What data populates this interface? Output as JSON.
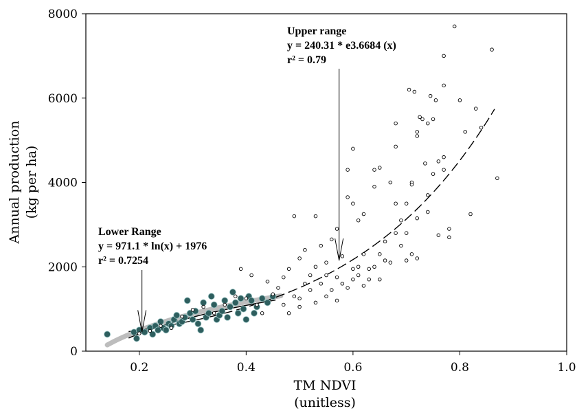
{
  "chart_data": {
    "type": "scatter",
    "xlabel_line1": "TM NDVI",
    "xlabel_line2": "(unitless)",
    "ylabel_line1": "Annual production",
    "ylabel_line2": "(kg per ha)",
    "xlim": [
      0.1,
      1.0
    ],
    "ylim": [
      0,
      8000
    ],
    "xticks": [
      0.2,
      0.4,
      0.6,
      0.8,
      1.0
    ],
    "xtick_labels": [
      "0.2",
      "0.4",
      "0.6",
      "0.8",
      "1.0"
    ],
    "yticks": [
      0,
      2000,
      4000,
      6000,
      8000
    ],
    "ytick_labels": [
      "0",
      "2000",
      "4000",
      "6000",
      "8000"
    ],
    "annotations": {
      "upper": {
        "title": "Upper range",
        "equation": "y = 240.31 * e3.6684 (x)",
        "r2": "r² = 0.79"
      },
      "lower": {
        "title": "Lower Range",
        "equation": "y = 971.1 * ln(x) + 1976",
        "r2": "r² = 0.7254"
      }
    },
    "fits": {
      "upper": {
        "a": 240.31,
        "b": 3.6684,
        "x_range": [
          0.18,
          0.87
        ]
      },
      "lower": {
        "a": 971.1,
        "b": 1976,
        "x_range": [
          0.18,
          0.46
        ]
      }
    },
    "series": [
      {
        "marker": "filled-teal",
        "color": "#2e5e5e",
        "points": [
          [
            0.14,
            400
          ],
          [
            0.19,
            450
          ],
          [
            0.195,
            300
          ],
          [
            0.2,
            500
          ],
          [
            0.21,
            450
          ],
          [
            0.22,
            550
          ],
          [
            0.225,
            400
          ],
          [
            0.23,
            600
          ],
          [
            0.235,
            500
          ],
          [
            0.24,
            700
          ],
          [
            0.245,
            550
          ],
          [
            0.25,
            500
          ],
          [
            0.255,
            650
          ],
          [
            0.26,
            600
          ],
          [
            0.265,
            750
          ],
          [
            0.27,
            850
          ],
          [
            0.275,
            650
          ],
          [
            0.28,
            700
          ],
          [
            0.285,
            800
          ],
          [
            0.29,
            1200
          ],
          [
            0.295,
            900
          ],
          [
            0.3,
            750
          ],
          [
            0.305,
            950
          ],
          [
            0.31,
            650
          ],
          [
            0.315,
            500
          ],
          [
            0.32,
            1150
          ],
          [
            0.325,
            800
          ],
          [
            0.33,
            900
          ],
          [
            0.335,
            1300
          ],
          [
            0.34,
            1100
          ],
          [
            0.345,
            750
          ],
          [
            0.35,
            850
          ],
          [
            0.355,
            950
          ],
          [
            0.36,
            1200
          ],
          [
            0.365,
            800
          ],
          [
            0.37,
            1050
          ],
          [
            0.375,
            1400
          ],
          [
            0.38,
            1150
          ],
          [
            0.385,
            900
          ],
          [
            0.39,
            1250
          ],
          [
            0.395,
            1000
          ],
          [
            0.4,
            750
          ],
          [
            0.405,
            1300
          ],
          [
            0.41,
            1200
          ],
          [
            0.415,
            900
          ],
          [
            0.42,
            1050
          ],
          [
            0.43,
            1250
          ],
          [
            0.44,
            1150
          ],
          [
            0.45,
            1300
          ]
        ]
      },
      {
        "marker": "open-circle",
        "color": "#000000",
        "points": [
          [
            0.2,
            420
          ],
          [
            0.22,
            480
          ],
          [
            0.24,
            600
          ],
          [
            0.26,
            550
          ],
          [
            0.28,
            820
          ],
          [
            0.3,
            980
          ],
          [
            0.32,
            1050
          ],
          [
            0.34,
            900
          ],
          [
            0.36,
            1100
          ],
          [
            0.38,
            1300
          ],
          [
            0.39,
            1950
          ],
          [
            0.4,
            1250
          ],
          [
            0.41,
            1800
          ],
          [
            0.42,
            1100
          ],
          [
            0.43,
            900
          ],
          [
            0.44,
            1650
          ],
          [
            0.45,
            1350
          ],
          [
            0.46,
            1500
          ],
          [
            0.47,
            1750
          ],
          [
            0.47,
            1100
          ],
          [
            0.48,
            1950
          ],
          [
            0.48,
            900
          ],
          [
            0.49,
            3200
          ],
          [
            0.49,
            1300
          ],
          [
            0.5,
            1250
          ],
          [
            0.5,
            2200
          ],
          [
            0.5,
            1050
          ],
          [
            0.51,
            1600
          ],
          [
            0.51,
            2400
          ],
          [
            0.52,
            1450
          ],
          [
            0.52,
            1800
          ],
          [
            0.53,
            3200
          ],
          [
            0.53,
            2000
          ],
          [
            0.53,
            1150
          ],
          [
            0.54,
            1600
          ],
          [
            0.54,
            2500
          ],
          [
            0.55,
            1800
          ],
          [
            0.55,
            1300
          ],
          [
            0.55,
            2100
          ],
          [
            0.56,
            1450
          ],
          [
            0.56,
            2650
          ],
          [
            0.57,
            1750
          ],
          [
            0.57,
            2900
          ],
          [
            0.57,
            1200
          ],
          [
            0.58,
            1600
          ],
          [
            0.58,
            2250
          ],
          [
            0.59,
            3650
          ],
          [
            0.59,
            1500
          ],
          [
            0.59,
            4300
          ],
          [
            0.6,
            1950
          ],
          [
            0.6,
            3500
          ],
          [
            0.6,
            1700
          ],
          [
            0.6,
            4800
          ],
          [
            0.61,
            1800
          ],
          [
            0.61,
            2000
          ],
          [
            0.61,
            3100
          ],
          [
            0.62,
            1550
          ],
          [
            0.62,
            3250
          ],
          [
            0.62,
            2300
          ],
          [
            0.63,
            1700
          ],
          [
            0.63,
            1950
          ],
          [
            0.64,
            2000
          ],
          [
            0.64,
            4300
          ],
          [
            0.64,
            3900
          ],
          [
            0.65,
            2300
          ],
          [
            0.65,
            1700
          ],
          [
            0.65,
            4350
          ],
          [
            0.66,
            2600
          ],
          [
            0.66,
            2150
          ],
          [
            0.67,
            2100
          ],
          [
            0.67,
            4000
          ],
          [
            0.68,
            5400
          ],
          [
            0.68,
            4850
          ],
          [
            0.68,
            2800
          ],
          [
            0.68,
            3500
          ],
          [
            0.69,
            2500
          ],
          [
            0.69,
            3100
          ],
          [
            0.7,
            2150
          ],
          [
            0.7,
            3500
          ],
          [
            0.7,
            2800
          ],
          [
            0.71,
            4000
          ],
          [
            0.71,
            3950
          ],
          [
            0.71,
            2300
          ],
          [
            0.72,
            5200
          ],
          [
            0.72,
            5100
          ],
          [
            0.72,
            2200
          ],
          [
            0.72,
            3150
          ],
          [
            0.73,
            5500
          ],
          [
            0.74,
            5400
          ],
          [
            0.74,
            3700
          ],
          [
            0.74,
            3300
          ],
          [
            0.75,
            5500
          ],
          [
            0.75,
            4200
          ],
          [
            0.76,
            4500
          ],
          [
            0.76,
            2750
          ],
          [
            0.77,
            7000
          ],
          [
            0.77,
            6300
          ],
          [
            0.77,
            4600
          ],
          [
            0.77,
            4300
          ],
          [
            0.78,
            2900
          ],
          [
            0.78,
            2700
          ],
          [
            0.79,
            7700
          ],
          [
            0.8,
            5950
          ],
          [
            0.81,
            5200
          ],
          [
            0.82,
            3250
          ],
          [
            0.83,
            5750
          ],
          [
            0.84,
            5300
          ],
          [
            0.86,
            7150
          ],
          [
            0.87,
            4100
          ],
          [
            0.705,
            6200
          ],
          [
            0.715,
            6150
          ],
          [
            0.725,
            5550
          ],
          [
            0.735,
            4450
          ],
          [
            0.745,
            6050
          ],
          [
            0.755,
            5950
          ]
        ]
      }
    ]
  }
}
